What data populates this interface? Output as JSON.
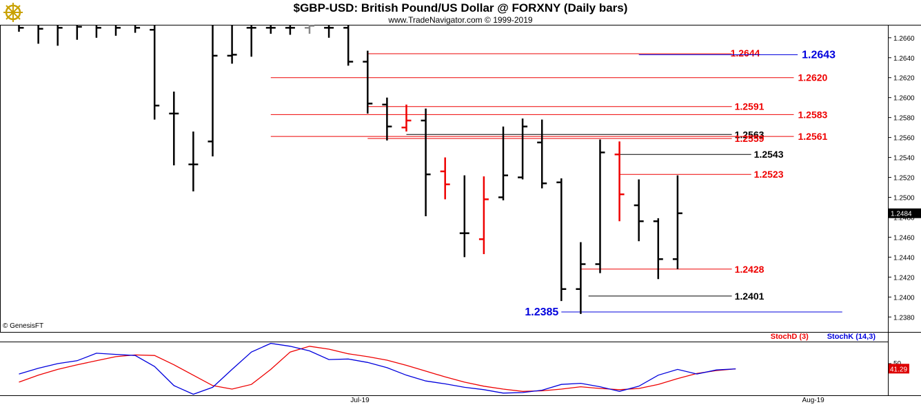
{
  "header": {
    "title": "$GBP-USD:  British Pound/US Dollar @ FORXNY  (Daily bars)",
    "subtitle": "www.TradeNavigator.com © 1999-2019"
  },
  "footer": {
    "copyright": "© GenesisFT"
  },
  "colors": {
    "up_bar": "#000000",
    "down_bar": "#ee0000",
    "stoch_d": "#dd0000",
    "stoch_k": "#0000cc",
    "blue_level": "#0000dd"
  },
  "chart_data": [
    {
      "type": "ohlc",
      "ylim": [
        1.2365,
        1.2673
      ],
      "y_ticks": [
        "1.2660",
        "1.2640",
        "1.2620",
        "1.2600",
        "1.2580",
        "1.2560",
        "1.2540",
        "1.2520",
        "1.2500",
        "1.2480",
        "1.2460",
        "1.2440",
        "1.2420",
        "1.2400",
        "1.2380"
      ],
      "x_labels": [
        {
          "label": "Jul-19",
          "index": 17.6
        },
        {
          "label": "Aug-19",
          "index": 41
        }
      ],
      "last_price": "1.2484",
      "bars": [
        {
          "o": 1.2674,
          "h": 1.268,
          "l": 1.2666,
          "c": 1.267,
          "color": "black"
        },
        {
          "o": 1.2674,
          "h": 1.268,
          "l": 1.2654,
          "c": 1.2669,
          "color": "black"
        },
        {
          "o": 1.2674,
          "h": 1.268,
          "l": 1.2652,
          "c": 1.267,
          "color": "black"
        },
        {
          "o": 1.2674,
          "h": 1.268,
          "l": 1.2658,
          "c": 1.2671,
          "color": "black"
        },
        {
          "o": 1.2674,
          "h": 1.268,
          "l": 1.266,
          "c": 1.267,
          "color": "black"
        },
        {
          "o": 1.2674,
          "h": 1.268,
          "l": 1.2662,
          "c": 1.267,
          "color": "black"
        },
        {
          "o": 1.2674,
          "h": 1.268,
          "l": 1.2665,
          "c": 1.267,
          "color": "black"
        },
        {
          "o": 1.2668,
          "h": 1.268,
          "l": 1.2578,
          "c": 1.2592,
          "color": "black"
        },
        {
          "o": 1.2584,
          "h": 1.2606,
          "l": 1.2532,
          "c": 1.2584,
          "color": "black"
        },
        {
          "o": 1.2533,
          "h": 1.2566,
          "l": 1.2506,
          "c": 1.2533,
          "color": "black"
        },
        {
          "o": 1.2556,
          "h": 1.268,
          "l": 1.2541,
          "c": 1.2642,
          "color": "black"
        },
        {
          "o": 1.2642,
          "h": 1.268,
          "l": 1.2634,
          "c": 1.2643,
          "color": "black"
        },
        {
          "o": 1.267,
          "h": 1.268,
          "l": 1.2641,
          "c": 1.267,
          "color": "black"
        },
        {
          "o": 1.267,
          "h": 1.268,
          "l": 1.2664,
          "c": 1.267,
          "color": "black"
        },
        {
          "o": 1.267,
          "h": 1.268,
          "l": 1.2663,
          "c": 1.267,
          "color": "black"
        },
        {
          "o": 1.267,
          "h": 1.2676,
          "l": 1.2664,
          "c": 1.2672,
          "color": "gray"
        },
        {
          "o": 1.267,
          "h": 1.268,
          "l": 1.266,
          "c": 1.267,
          "color": "black"
        },
        {
          "o": 1.267,
          "h": 1.268,
          "l": 1.2632,
          "c": 1.2636,
          "color": "black"
        },
        {
          "o": 1.2636,
          "h": 1.2647,
          "l": 1.2584,
          "c": 1.2594,
          "color": "black"
        },
        {
          "o": 1.2593,
          "h": 1.26,
          "l": 1.2557,
          "c": 1.2571,
          "color": "black"
        },
        {
          "o": 1.257,
          "h": 1.2593,
          "l": 1.2566,
          "c": 1.2577,
          "color": "red"
        },
        {
          "o": 1.2577,
          "h": 1.2589,
          "l": 1.2481,
          "c": 1.2523,
          "color": "black"
        },
        {
          "o": 1.2526,
          "h": 1.254,
          "l": 1.2498,
          "c": 1.2513,
          "color": "red"
        },
        {
          "o": 1.2464,
          "h": 1.2522,
          "l": 1.244,
          "c": 1.2464,
          "color": "black"
        },
        {
          "o": 1.2458,
          "h": 1.2521,
          "l": 1.2443,
          "c": 1.2498,
          "color": "red"
        },
        {
          "o": 1.25,
          "h": 1.2571,
          "l": 1.2497,
          "c": 1.2522,
          "color": "black"
        },
        {
          "o": 1.252,
          "h": 1.2579,
          "l": 1.2518,
          "c": 1.2571,
          "color": "black"
        },
        {
          "o": 1.2555,
          "h": 1.2578,
          "l": 1.2509,
          "c": 1.2514,
          "color": "black"
        },
        {
          "o": 1.2515,
          "h": 1.2519,
          "l": 1.2396,
          "c": 1.2408,
          "color": "black"
        },
        {
          "o": 1.2408,
          "h": 1.2455,
          "l": 1.2383,
          "c": 1.2433,
          "color": "black"
        },
        {
          "o": 1.2433,
          "h": 1.2558,
          "l": 1.2424,
          "c": 1.2545,
          "color": "black"
        },
        {
          "o": 1.2543,
          "h": 1.2556,
          "l": 1.2476,
          "c": 1.2503,
          "color": "red"
        },
        {
          "o": 1.2492,
          "h": 1.2518,
          "l": 1.2456,
          "c": 1.2476,
          "color": "black"
        },
        {
          "o": 1.2476,
          "h": 1.2479,
          "l": 1.2418,
          "c": 1.2438,
          "color": "black"
        },
        {
          "o": 1.2438,
          "h": 1.2522,
          "l": 1.2428,
          "c": 1.2484,
          "color": "black"
        }
      ],
      "levels": [
        {
          "value": 1.2644,
          "label": "1.2644",
          "color": "red",
          "from": 18,
          "to": 36.8,
          "side": "mid",
          "size": 14,
          "placement": "above"
        },
        {
          "value": 1.2643,
          "label": "1.2643",
          "color": "blue",
          "from": 32,
          "to": 40.2,
          "side": "right",
          "size": 16
        },
        {
          "value": 1.262,
          "label": "1.2620",
          "color": "red",
          "from": 13,
          "to": 40,
          "side": "right",
          "size": 14
        },
        {
          "value": 1.2591,
          "label": "1.2591",
          "color": "red",
          "from": 18,
          "to": 36.8,
          "side": "right_of_end",
          "size": 14
        },
        {
          "value": 1.2583,
          "label": "1.2583",
          "color": "red",
          "from": 13,
          "to": 40,
          "side": "right",
          "size": 14
        },
        {
          "value": 1.2563,
          "label": "1.2563",
          "color": "black",
          "from": 20,
          "to": 36.8,
          "side": "right_of_end",
          "size": 14
        },
        {
          "value": 1.2561,
          "label": "1.2561",
          "color": "red",
          "from": 13,
          "to": 40,
          "side": "right",
          "size": 14
        },
        {
          "value": 1.2559,
          "label": "1.2559",
          "color": "red",
          "from": 18,
          "to": 36.8,
          "side": "right_of_end",
          "size": 14
        },
        {
          "value": 1.2543,
          "label": "1.2543",
          "color": "black",
          "from": 31,
          "to": 37.8,
          "side": "right_of_end",
          "size": 14
        },
        {
          "value": 1.2523,
          "label": "1.2523",
          "color": "red",
          "from": 31,
          "to": 37.8,
          "side": "right_of_end",
          "size": 14
        },
        {
          "value": 1.2428,
          "label": "1.2428",
          "color": "red",
          "from": 29,
          "to": 36.8,
          "side": "right_of_end",
          "size": 14
        },
        {
          "value": 1.2401,
          "label": "1.2401",
          "color": "black",
          "from": 29.4,
          "to": 36.8,
          "side": "right_of_end",
          "size": 14
        },
        {
          "value": 1.2385,
          "label": "1.2385",
          "color": "blue",
          "from": 28,
          "to": 42.5,
          "side": "left_of_start",
          "size": 16
        }
      ]
    },
    {
      "type": "line",
      "title": "",
      "ylim": [
        0,
        100
      ],
      "y_ticks": [
        "50"
      ],
      "last_value": "41.29",
      "legend": [
        {
          "name": "StochD (3)",
          "color": "red"
        },
        {
          "name": "StochK (14,3)",
          "color": "blue"
        }
      ],
      "series": [
        {
          "name": "StochD (3)",
          "color": "red",
          "values": [
            18,
            30,
            40,
            48,
            55,
            62,
            65,
            64,
            48,
            30,
            12,
            6,
            14,
            40,
            70,
            80,
            75,
            67,
            62,
            56,
            47,
            37,
            27,
            18,
            11,
            6,
            2,
            3,
            6,
            10,
            7,
            5,
            7,
            14,
            24,
            33,
            38,
            41
          ]
        },
        {
          "name": "StochK (14,3)",
          "color": "blue",
          "values": [
            32,
            42,
            50,
            55,
            68,
            66,
            64,
            45,
            12,
            -3,
            9,
            40,
            70,
            85,
            80,
            72,
            57,
            58,
            52,
            43,
            30,
            20,
            15,
            9,
            5,
            -1,
            0,
            4,
            14,
            16,
            10,
            2,
            11,
            30,
            40,
            32,
            39,
            41
          ]
        }
      ]
    }
  ]
}
